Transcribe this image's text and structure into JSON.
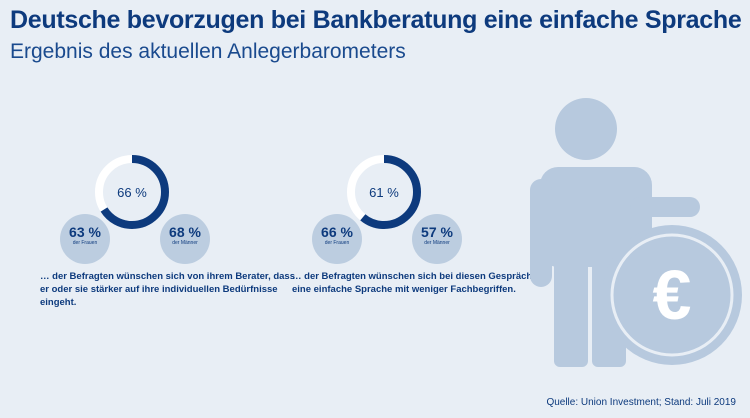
{
  "header": {
    "title": "Deutsche bevorzugen bei Bankberatung eine einfache Sprache",
    "subtitle": "Ergebnis des aktuellen Anlegerbarometers"
  },
  "colors": {
    "dark": "#0d3a7d",
    "track": "#ffffff",
    "light": "#bccde0",
    "figure": "#b7c9de",
    "background": "#e8eef5"
  },
  "icons": [
    "person-icon",
    "euro-coin-icon"
  ],
  "chart_data": [
    {
      "type": "pie",
      "total": {
        "label": "66 %",
        "value": 66
      },
      "groups": [
        {
          "label": "63 %",
          "value": 63,
          "name": "der Frauen"
        },
        {
          "label": "68 %",
          "value": 68,
          "name": "der Männer"
        }
      ],
      "annotation": "… der Befragten wünschen sich von ihrem Berater, dass er oder sie stärker auf ihre individuellen Bedürfnisse eingeht."
    },
    {
      "type": "pie",
      "total": {
        "label": "61 %",
        "value": 61
      },
      "groups": [
        {
          "label": "66 %",
          "value": 66,
          "name": "der Frauen"
        },
        {
          "label": "57 %",
          "value": 57,
          "name": "der Männer"
        }
      ],
      "annotation": "… der Befragten wünschen sich bei diesen Gesprächen eine einfache Sprache mit weniger Fachbegriffen."
    }
  ],
  "footer": {
    "source": "Quelle: Union Investment; Stand: Juli 2019"
  }
}
